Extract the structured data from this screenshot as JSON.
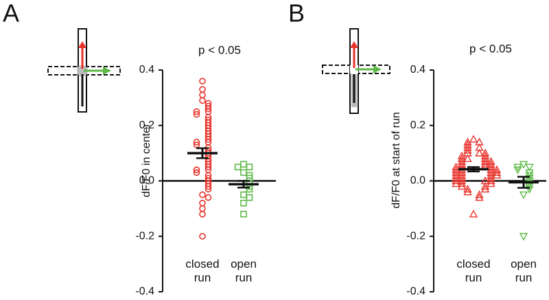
{
  "chart_data": [
    {
      "type": "strip",
      "panel": "A",
      "annotation": "p  < 0.05",
      "ylabel": "dF/F0 in center",
      "ylim": [
        -0.4,
        0.4
      ],
      "yticks": [
        -0.4,
        -0.2,
        {
          "value": 0,
          "label": "0.0"
        },
        0.2,
        0.4
      ],
      "categories": [
        "closed run",
        "open run"
      ],
      "series": [
        {
          "color": "#e8312a",
          "marker": "circle",
          "mean": 0.1,
          "error": 0.018,
          "values": [
            0.36,
            0.33,
            0.31,
            0.29,
            0.28,
            0.27,
            0.26,
            0.25,
            0.25,
            0.24,
            0.23,
            0.22,
            0.21,
            0.2,
            0.19,
            0.18,
            0.17,
            0.16,
            0.15,
            0.14,
            0.14,
            0.13,
            0.12,
            0.11,
            0.1,
            0.09,
            0.08,
            0.07,
            0.06,
            0.05,
            0.04,
            0.04,
            0.03,
            0.02,
            0.01,
            0.0,
            -0.01,
            -0.02,
            -0.03,
            -0.05,
            -0.06,
            -0.08,
            -0.1,
            -0.12,
            -0.2
          ]
        },
        {
          "color": "#5cb946",
          "marker": "square",
          "mean": -0.012,
          "error": 0.012,
          "values": [
            0.06,
            0.05,
            0.05,
            0.03,
            0.02,
            0.01,
            0.0,
            -0.01,
            -0.02,
            -0.03,
            -0.05,
            -0.06,
            -0.08,
            -0.12
          ]
        }
      ]
    },
    {
      "type": "strip",
      "panel": "B",
      "annotation": "p  < 0.05",
      "ylabel": "dF/F0 at start of run",
      "ylim": [
        -0.4,
        0.4
      ],
      "yticks": [
        -0.4,
        -0.2,
        {
          "value": 0,
          "label": "0.0"
        },
        0.2,
        0.4
      ],
      "categories": [
        "closed run",
        "open run"
      ],
      "series": [
        {
          "color": "#e8312a",
          "marker": "triangle-up",
          "mean": 0.042,
          "error": 0.008,
          "values": [
            0.15,
            0.14,
            0.14,
            0.13,
            0.12,
            0.12,
            0.11,
            0.1,
            0.1,
            0.1,
            0.09,
            0.09,
            0.08,
            0.08,
            0.08,
            0.07,
            0.07,
            0.07,
            0.06,
            0.06,
            0.06,
            0.05,
            0.05,
            0.05,
            0.05,
            0.04,
            0.04,
            0.04,
            0.04,
            0.03,
            0.03,
            0.03,
            0.03,
            0.02,
            0.02,
            0.02,
            0.02,
            0.01,
            0.01,
            0.01,
            0.0,
            0.0,
            0.0,
            0.0,
            -0.01,
            -0.01,
            -0.01,
            -0.02,
            -0.02,
            -0.03,
            -0.03,
            -0.04,
            -0.05,
            -0.06,
            -0.12
          ]
        },
        {
          "color": "#5cb946",
          "marker": "triangle-down",
          "mean": -0.005,
          "error": 0.02,
          "values": [
            0.06,
            0.05,
            0.05,
            0.04,
            0.03,
            0.02,
            0.01,
            0.0,
            -0.01,
            -0.02,
            -0.03,
            -0.05,
            -0.2
          ]
        }
      ]
    }
  ]
}
